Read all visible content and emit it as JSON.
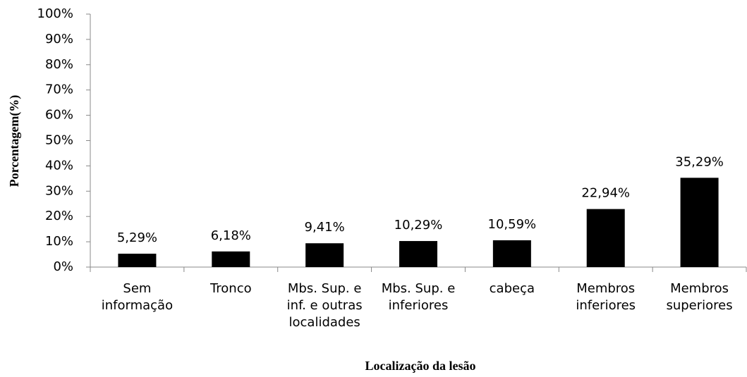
{
  "chart_data": {
    "type": "bar",
    "categories": [
      "Sem informação",
      "Tronco",
      "Mbs. Sup. e inf. e outras localidades",
      "Mbs. Sup. e inferiores",
      "cabeça",
      "Membros inferiores",
      "Membros superiores"
    ],
    "values": [
      5.29,
      6.18,
      9.41,
      10.29,
      10.59,
      22.94,
      35.29
    ],
    "value_labels": [
      "5,29%",
      "6,18%",
      "9,41%",
      "10,29%",
      "10,59%",
      "22,94%",
      "35,29%"
    ],
    "color": "#000000",
    "ylim": [
      0,
      100
    ],
    "yticks": [
      {
        "value": 0,
        "label": "0%"
      },
      {
        "value": 10,
        "label": "10%"
      },
      {
        "value": 20,
        "label": "20%"
      },
      {
        "value": 30,
        "label": "30%"
      },
      {
        "value": 40,
        "label": "40%"
      },
      {
        "value": 50,
        "label": "50%"
      },
      {
        "value": 60,
        "label": "60%"
      },
      {
        "value": 70,
        "label": "70%"
      },
      {
        "value": 80,
        "label": "80%"
      },
      {
        "value": 90,
        "label": "90%"
      },
      {
        "value": 100,
        "label": "100%"
      }
    ],
    "ylabel": "Porcentagem(%)",
    "xlabel": "Localização da lesão",
    "grid": false
  }
}
